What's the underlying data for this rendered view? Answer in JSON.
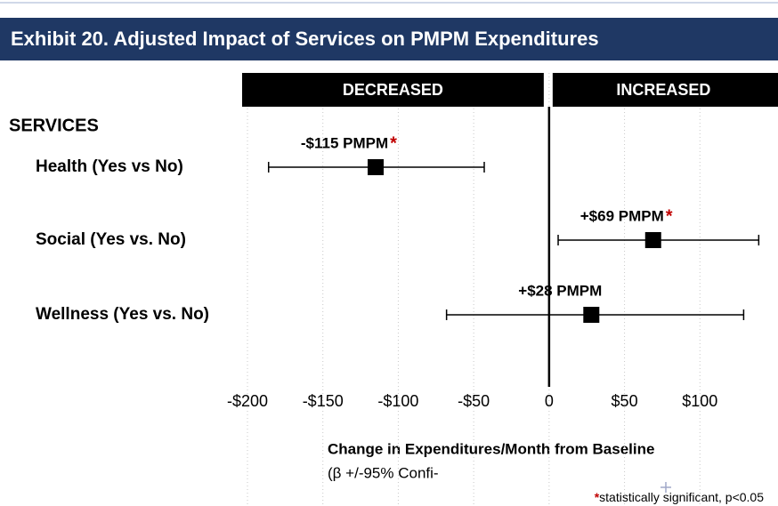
{
  "chart_data": {
    "type": "forest",
    "title": "Exhibit 20. Adjusted Impact of Services on PMPM Expenditures",
    "direction_labels": [
      "DECREASED",
      "INCREASED"
    ],
    "category_header": "SERVICES",
    "categories": [
      "Health (Yes vs No)",
      "Social (Yes vs. No)",
      "Wellness  (Yes vs. No)"
    ],
    "values": [
      -115,
      69,
      28
    ],
    "value_labels": [
      "-$115 PMPM",
      "+$69 PMPM",
      "+$28 PMPM"
    ],
    "lower": [
      -186,
      6,
      -68
    ],
    "upper": [
      -43,
      139,
      129
    ],
    "significant": [
      true,
      true,
      false
    ],
    "significance_marker": "*",
    "color": "#000000",
    "marker_color": "#c00000",
    "xlim": [
      -200,
      150
    ],
    "xticks": [
      {
        "value": -200,
        "label": "-$200"
      },
      {
        "value": -150,
        "label": "-$150"
      },
      {
        "value": -100,
        "label": "-$100"
      },
      {
        "value": -50,
        "label": "-$50"
      },
      0,
      {
        "value": 50,
        "label": "$50"
      },
      {
        "value": 100,
        "label": "$100"
      }
    ],
    "grid": true,
    "x_label": "Change in Expenditures/Month from Baseline",
    "x_sublabel": "(β +/-95% Confi-",
    "footnote": "statistically significant, p<0.05"
  }
}
